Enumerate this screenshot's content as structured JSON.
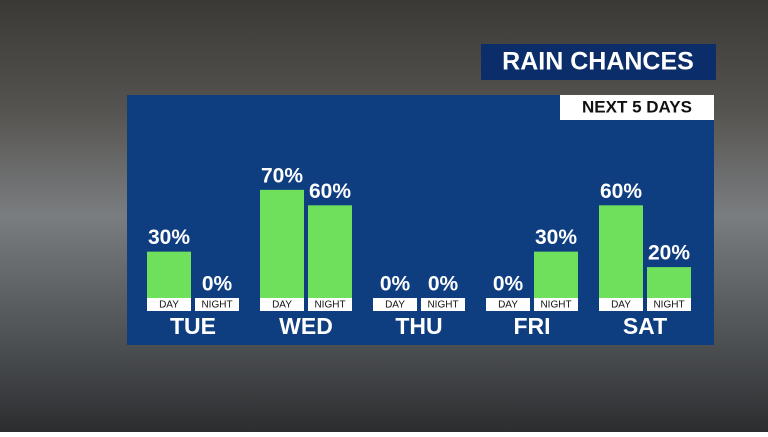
{
  "chart_data": {
    "type": "bar",
    "title": "RAIN CHANCES",
    "subtitle": "NEXT 5 DAYS",
    "categories": [
      "TUE",
      "WED",
      "THU",
      "FRI",
      "SAT"
    ],
    "series": [
      {
        "name": "DAY",
        "color": "#6ee05c",
        "values": [
          30,
          70,
          0,
          0,
          60
        ],
        "value_labels": [
          "30%",
          "70%",
          "0%",
          "0%",
          "60%"
        ]
      },
      {
        "name": "NIGHT",
        "color": "#6ee05c",
        "values": [
          0,
          60,
          0,
          30,
          20
        ],
        "value_labels": [
          "0%",
          "60%",
          "0%",
          "30%",
          "20%"
        ]
      }
    ]
  }
}
